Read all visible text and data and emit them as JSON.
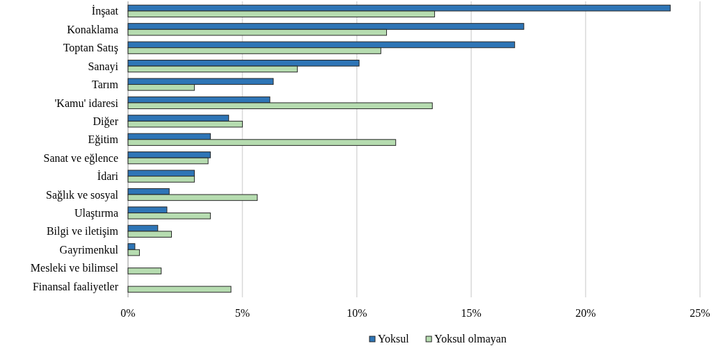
{
  "chart_data": {
    "type": "bar",
    "orientation": "horizontal",
    "categories": [
      "İnşaat",
      "Konaklama",
      "Toptan Satış",
      "Sanayi",
      "Tarım",
      "'Kamu' idaresi",
      "Diğer",
      "Eğitim",
      "Sanat ve eğlence",
      "İdari",
      "Sağlık ve sosyal",
      "Ulaştırma ",
      "Bilgi ve iletişim",
      "Gayrimenkul",
      "Mesleki ve bilimsel",
      "Finansal faaliyetler"
    ],
    "series": [
      {
        "name": "Yoksul",
        "color": "#2e75b6",
        "values": [
          23.7,
          17.3,
          16.9,
          10.1,
          6.35,
          6.2,
          4.4,
          3.6,
          3.6,
          2.9,
          1.8,
          1.7,
          1.3,
          0.3,
          0,
          0
        ]
      },
      {
        "name": "Yoksul olmayan",
        "color": "#b6dcb0",
        "values": [
          13.4,
          11.3,
          11.05,
          7.4,
          2.9,
          13.3,
          5.0,
          11.7,
          3.5,
          2.9,
          5.65,
          3.6,
          1.9,
          0.5,
          1.45,
          4.5
        ]
      }
    ],
    "xlim": [
      0,
      25
    ],
    "xticks": [
      {
        "value": 0,
        "label": "0%"
      },
      {
        "value": 5,
        "label": "5%"
      },
      {
        "value": 10,
        "label": "10%"
      },
      {
        "value": 15,
        "label": "15%"
      },
      {
        "value": 20,
        "label": "20%"
      },
      {
        "value": 25,
        "label": "25%"
      }
    ],
    "grid": "x",
    "legend": "bottom"
  }
}
